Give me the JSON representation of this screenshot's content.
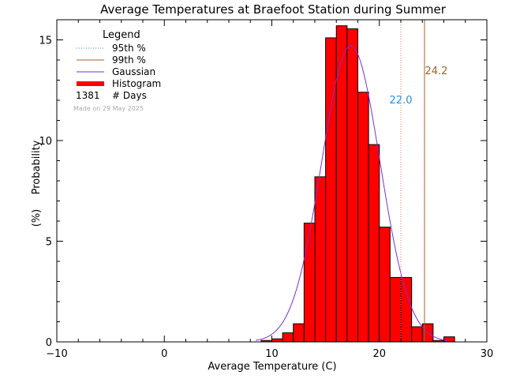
{
  "chart_data": {
    "type": "bar",
    "title": "Average Temperatures at Braefoot Station during Summer",
    "xlabel": "Average Temperature (C)",
    "ylabel_line1": "Probability",
    "ylabel_line2": "(%)",
    "xlim": [
      -10,
      30
    ],
    "ylim": [
      0,
      16
    ],
    "xticks": [
      -10,
      0,
      10,
      20,
      30
    ],
    "yticks": [
      0,
      5,
      10,
      15
    ],
    "bin_width": 1,
    "bins": [
      {
        "x0": 9,
        "value": 0.07
      },
      {
        "x0": 10,
        "value": 0.15
      },
      {
        "x0": 11,
        "value": 0.45
      },
      {
        "x0": 12,
        "value": 0.9
      },
      {
        "x0": 13,
        "value": 5.9
      },
      {
        "x0": 14,
        "value": 8.2
      },
      {
        "x0": 15,
        "value": 15.1
      },
      {
        "x0": 16,
        "value": 15.7
      },
      {
        "x0": 17,
        "value": 15.55
      },
      {
        "x0": 18,
        "value": 12.4
      },
      {
        "x0": 19,
        "value": 9.8
      },
      {
        "x0": 20,
        "value": 5.7
      },
      {
        "x0": 21,
        "value": 3.2
      },
      {
        "x0": 22,
        "value": 3.2
      },
      {
        "x0": 23,
        "value": 0.75
      },
      {
        "x0": 24,
        "value": 0.9
      },
      {
        "x0": 25,
        "value": 0.07
      },
      {
        "x0": 26,
        "value": 0.25
      }
    ],
    "gaussian": {
      "mean": 17.35,
      "sigma": 2.72,
      "peak": 14.7,
      "x_from": 8.5,
      "x_to": 26.5
    },
    "p95": {
      "value": 22.0,
      "label": "22.0",
      "color": "#e8745a",
      "label_color": "#2a8fd6"
    },
    "p99": {
      "value": 24.2,
      "label": "24.2",
      "color": "#a0632a",
      "label_color": "#a0632a"
    },
    "colors": {
      "bar": "#ff0000",
      "gaussian": "#7b2fd6"
    },
    "legend": {
      "title": "Legend",
      "placement": "top-left",
      "items": [
        {
          "label": "95th %",
          "style": "dotted",
          "color": "#2a8fd6"
        },
        {
          "label": "99th %",
          "style": "solid",
          "color": "#a0632a"
        },
        {
          "label": "Gaussian",
          "style": "solid",
          "color": "#7b2fd6"
        },
        {
          "label": "Histogram",
          "style": "thick",
          "color": "#ff0000"
        }
      ],
      "count_value": "1381",
      "count_label": "# Days",
      "made_on": "Made on 29 May 2025"
    }
  }
}
